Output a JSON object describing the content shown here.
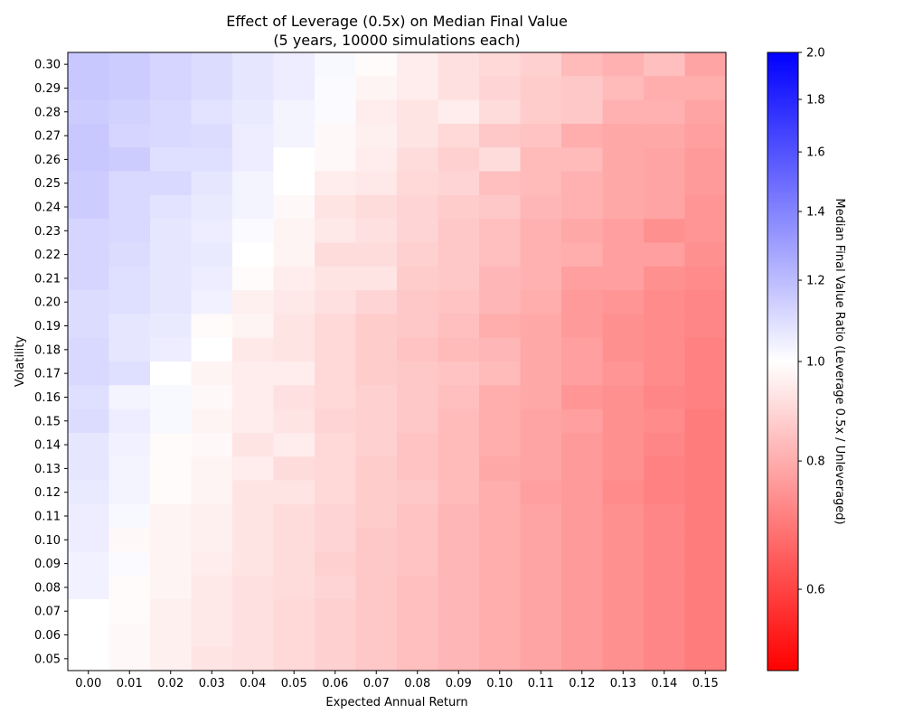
{
  "chart_data": {
    "type": "heatmap",
    "title": "Effect of Leverage (0.5x) on Median Final Value",
    "subtitle": "(5 years, 10000 simulations each)",
    "xlabel": "Expected Annual Return",
    "ylabel": "Volatility",
    "x": [
      "0.00",
      "0.01",
      "0.02",
      "0.03",
      "0.04",
      "0.05",
      "0.06",
      "0.07",
      "0.08",
      "0.09",
      "0.10",
      "0.11",
      "0.12",
      "0.13",
      "0.14",
      "0.15"
    ],
    "y": [
      "0.30",
      "0.29",
      "0.28",
      "0.27",
      "0.26",
      "0.25",
      "0.24",
      "0.23",
      "0.22",
      "0.21",
      "0.20",
      "0.19",
      "0.18",
      "0.17",
      "0.16",
      "0.15",
      "0.14",
      "0.13",
      "0.12",
      "0.11",
      "0.10",
      "0.09",
      "0.08",
      "0.07",
      "0.06",
      "0.05"
    ],
    "values": [
      [
        1.16,
        1.15,
        1.12,
        1.1,
        1.07,
        1.05,
        1.02,
        0.99,
        0.95,
        0.92,
        0.9,
        0.88,
        0.83,
        0.81,
        0.84,
        0.78
      ],
      [
        1.16,
        1.15,
        1.12,
        1.1,
        1.07,
        1.05,
        1.01,
        0.97,
        0.95,
        0.92,
        0.89,
        0.87,
        0.86,
        0.83,
        0.8,
        0.8
      ],
      [
        1.15,
        1.13,
        1.11,
        1.08,
        1.06,
        1.03,
        1.01,
        0.95,
        0.93,
        0.95,
        0.91,
        0.87,
        0.86,
        0.81,
        0.81,
        0.78
      ],
      [
        1.16,
        1.12,
        1.11,
        1.1,
        1.05,
        1.03,
        0.98,
        0.96,
        0.93,
        0.9,
        0.86,
        0.85,
        0.8,
        0.79,
        0.79,
        0.77
      ],
      [
        1.16,
        1.15,
        1.09,
        1.09,
        1.05,
        1.0,
        0.98,
        0.95,
        0.91,
        0.88,
        0.91,
        0.83,
        0.83,
        0.79,
        0.78,
        0.76
      ],
      [
        1.15,
        1.11,
        1.11,
        1.07,
        1.03,
        1.0,
        0.95,
        0.94,
        0.9,
        0.89,
        0.84,
        0.83,
        0.81,
        0.79,
        0.78,
        0.76
      ],
      [
        1.15,
        1.11,
        1.08,
        1.06,
        1.03,
        0.98,
        0.93,
        0.91,
        0.89,
        0.87,
        0.86,
        0.82,
        0.81,
        0.79,
        0.78,
        0.75
      ],
      [
        1.12,
        1.11,
        1.07,
        1.05,
        1.01,
        0.97,
        0.94,
        0.92,
        0.89,
        0.86,
        0.84,
        0.81,
        0.79,
        0.77,
        0.74,
        0.75
      ],
      [
        1.12,
        1.1,
        1.07,
        1.06,
        1.0,
        0.97,
        0.91,
        0.91,
        0.88,
        0.86,
        0.84,
        0.81,
        0.8,
        0.77,
        0.77,
        0.74
      ],
      [
        1.12,
        1.09,
        1.07,
        1.05,
        0.99,
        0.95,
        0.93,
        0.93,
        0.87,
        0.86,
        0.82,
        0.81,
        0.77,
        0.77,
        0.74,
        0.73
      ],
      [
        1.1,
        1.09,
        1.07,
        1.04,
        0.96,
        0.94,
        0.92,
        0.89,
        0.86,
        0.85,
        0.82,
        0.8,
        0.76,
        0.75,
        0.73,
        0.72
      ],
      [
        1.1,
        1.07,
        1.06,
        0.99,
        0.97,
        0.93,
        0.9,
        0.87,
        0.86,
        0.84,
        0.8,
        0.79,
        0.76,
        0.74,
        0.73,
        0.72
      ],
      [
        1.11,
        1.07,
        1.05,
        1.0,
        0.94,
        0.93,
        0.9,
        0.87,
        0.85,
        0.83,
        0.82,
        0.79,
        0.77,
        0.74,
        0.73,
        0.71
      ],
      [
        1.11,
        1.09,
        1.0,
        0.97,
        0.95,
        0.95,
        0.9,
        0.87,
        0.86,
        0.85,
        0.83,
        0.79,
        0.77,
        0.75,
        0.73,
        0.71
      ],
      [
        1.09,
        1.03,
        1.02,
        0.98,
        0.95,
        0.92,
        0.9,
        0.88,
        0.86,
        0.84,
        0.8,
        0.79,
        0.75,
        0.74,
        0.72,
        0.71
      ],
      [
        1.1,
        1.05,
        1.02,
        0.97,
        0.95,
        0.93,
        0.89,
        0.88,
        0.86,
        0.83,
        0.8,
        0.78,
        0.77,
        0.74,
        0.73,
        0.7
      ],
      [
        1.07,
        1.04,
        0.99,
        0.98,
        0.93,
        0.95,
        0.9,
        0.88,
        0.85,
        0.83,
        0.8,
        0.78,
        0.76,
        0.74,
        0.72,
        0.7
      ],
      [
        1.07,
        1.03,
        0.99,
        0.97,
        0.95,
        0.91,
        0.9,
        0.87,
        0.85,
        0.83,
        0.79,
        0.78,
        0.76,
        0.74,
        0.71,
        0.7
      ],
      [
        1.06,
        1.03,
        0.99,
        0.97,
        0.93,
        0.93,
        0.9,
        0.87,
        0.86,
        0.83,
        0.8,
        0.77,
        0.76,
        0.73,
        0.71,
        0.7
      ],
      [
        1.05,
        1.02,
        0.97,
        0.96,
        0.93,
        0.91,
        0.89,
        0.87,
        0.85,
        0.82,
        0.8,
        0.78,
        0.76,
        0.74,
        0.72,
        0.7
      ],
      [
        1.05,
        0.98,
        0.97,
        0.96,
        0.93,
        0.91,
        0.89,
        0.86,
        0.85,
        0.82,
        0.8,
        0.78,
        0.76,
        0.74,
        0.72,
        0.7
      ],
      [
        1.04,
        1.01,
        0.97,
        0.95,
        0.93,
        0.91,
        0.88,
        0.86,
        0.85,
        0.82,
        0.8,
        0.78,
        0.76,
        0.74,
        0.72,
        0.7
      ],
      [
        1.04,
        0.99,
        0.97,
        0.94,
        0.92,
        0.91,
        0.89,
        0.86,
        0.84,
        0.82,
        0.8,
        0.78,
        0.76,
        0.74,
        0.72,
        0.7
      ],
      [
        1.0,
        0.99,
        0.96,
        0.94,
        0.92,
        0.9,
        0.88,
        0.86,
        0.84,
        0.82,
        0.8,
        0.78,
        0.76,
        0.74,
        0.72,
        0.7
      ],
      [
        1.0,
        0.98,
        0.96,
        0.94,
        0.92,
        0.9,
        0.88,
        0.86,
        0.84,
        0.82,
        0.8,
        0.78,
        0.76,
        0.74,
        0.72,
        0.7
      ],
      [
        1.0,
        0.98,
        0.96,
        0.93,
        0.92,
        0.9,
        0.88,
        0.86,
        0.84,
        0.82,
        0.8,
        0.78,
        0.76,
        0.74,
        0.72,
        0.7
      ]
    ],
    "colorbar": {
      "label": "Median Final Value Ratio (Leverage 0.5x / Unleveraged)",
      "min": 0.5,
      "max": 2.0,
      "center": 1.0,
      "scale": "log",
      "colormap": "bwr",
      "ticks": [
        "0.6",
        "0.8",
        "1.0",
        "1.2",
        "1.4",
        "1.6",
        "1.8",
        "2.0"
      ]
    },
    "grid": false,
    "colors": {
      "low": "#ff0000",
      "mid": "#ffffff",
      "high": "#0000ff"
    }
  }
}
